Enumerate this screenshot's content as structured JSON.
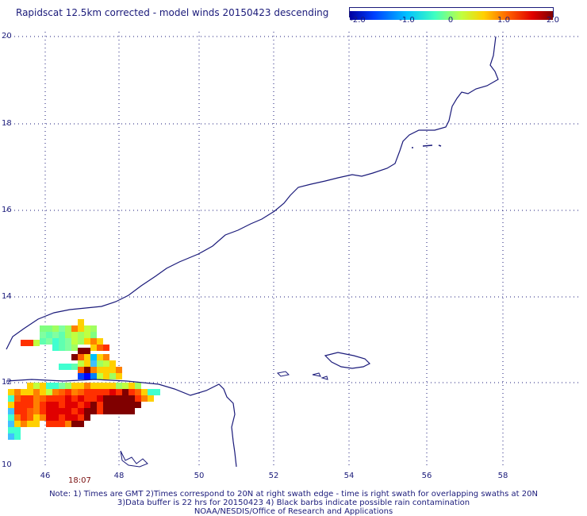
{
  "title": "Rapidscat 12.5km corrected - model winds 20150423 descending",
  "colorbar": {
    "ticks": [
      "-2.0",
      "-1.0",
      "0",
      "1.0",
      "2.0"
    ],
    "colors": [
      "#0000a0",
      "#0040ff",
      "#00c0ff",
      "#40ffc0",
      "#c0ff40",
      "#ffd000",
      "#ff6000",
      "#e00000",
      "#800000"
    ]
  },
  "map": {
    "lat_labels": [
      "20",
      "18",
      "16",
      "14",
      "12",
      "10"
    ],
    "lon_labels": [
      "46",
      "48",
      "50",
      "52",
      "54",
      "56",
      "58"
    ],
    "lat_range": [
      10,
      20
    ],
    "lon_range": [
      45,
      59.4
    ],
    "grid": "dotted",
    "coast_color": "#1a1a7a"
  },
  "time_label": "18:07",
  "notes": [
    "Note: 1) Times are GMT 2)Times correspond to 20N at right swath edge - time is right swath for overlapping swaths at 20N",
    "3)Data buffer is 22 hrs for 20150423 4) Black barbs indicate possible rain contamination",
    "NOAA/NESDIS/Office of Research and Applications"
  ]
}
